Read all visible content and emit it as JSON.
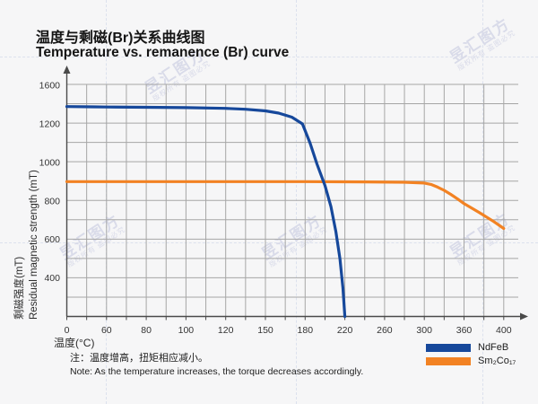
{
  "watermark": {
    "brand": "昱汇图方",
    "notice": "版权所有 盗图必究"
  },
  "notes": {
    "zh": "注：温度增高，扭矩相应减小。",
    "en": "Note: As the temperature increases, the torque decreases accordingly."
  },
  "chart_data": {
    "type": "line",
    "title_zh": "温度与剩磁(Br)关系曲线图",
    "title_en": "Temperature vs. remanence (Br) curve",
    "x_axis": {
      "label": "温度(°C)",
      "ticks": [
        0,
        60,
        80,
        100,
        120,
        150,
        180,
        220,
        260,
        300,
        360,
        400
      ]
    },
    "y_axis": {
      "label_zh": "剩磁强度(mT)",
      "label_en": "Residual magnetic strength (mT)",
      "ticks": [
        1600,
        1200,
        1000,
        800,
        600,
        400
      ]
    },
    "grid": true,
    "legend_position": "bottom-right",
    "series": [
      {
        "name": "NdFeB",
        "color": "#16489b",
        "points": [
          [
            0,
            1380
          ],
          [
            40,
            1377
          ],
          [
            60,
            1375
          ],
          [
            80,
            1372
          ],
          [
            100,
            1368
          ],
          [
            120,
            1361
          ],
          [
            135,
            1352
          ],
          [
            150,
            1335
          ],
          [
            160,
            1312
          ],
          [
            170,
            1270
          ],
          [
            178,
            1200
          ],
          [
            185,
            1100
          ],
          [
            192,
            990
          ],
          [
            200,
            880
          ],
          [
            206,
            770
          ],
          [
            211,
            640
          ],
          [
            215,
            500
          ],
          [
            218,
            350
          ],
          [
            220,
            200
          ]
        ]
      },
      {
        "name": "Sm₂Co₁₇",
        "color": "#f28223",
        "points": [
          [
            0,
            900
          ],
          [
            60,
            900
          ],
          [
            120,
            900
          ],
          [
            180,
            900
          ],
          [
            240,
            899
          ],
          [
            280,
            897
          ],
          [
            300,
            893
          ],
          [
            310,
            886
          ],
          [
            320,
            872
          ],
          [
            330,
            855
          ],
          [
            340,
            834
          ],
          [
            350,
            811
          ],
          [
            360,
            786
          ],
          [
            375,
            741
          ],
          [
            390,
            693
          ],
          [
            400,
            657
          ]
        ]
      }
    ]
  }
}
